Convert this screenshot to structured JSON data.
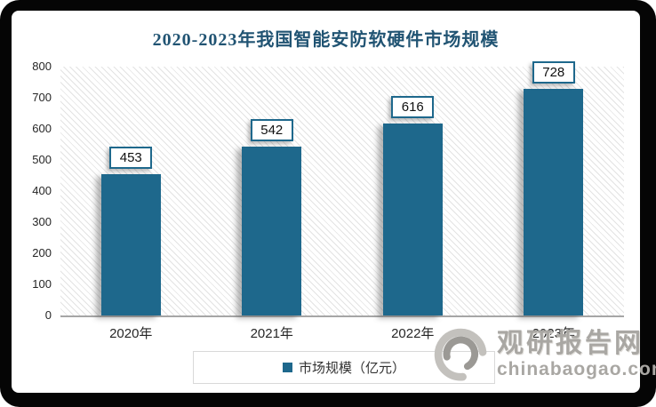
{
  "title": "2020-2023年我国智能安防软硬件市场规模",
  "chart_data": {
    "type": "bar",
    "title": "2020-2023年我国智能安防软硬件市场规模",
    "categories": [
      "2020年",
      "2021年",
      "2022年",
      "2023年"
    ],
    "values": [
      453,
      542,
      616,
      728
    ],
    "series": [
      {
        "name": "市场规模（亿元）",
        "values": [
          453,
          542,
          616,
          728
        ]
      }
    ],
    "unit": "亿元",
    "xlabel": "",
    "ylabel": "",
    "ylim": [
      0,
      800
    ],
    "yticks": [
      0,
      100,
      200,
      300,
      400,
      500,
      600,
      700,
      800
    ],
    "grid": false,
    "legend_position": "bottom",
    "plot_background": "white-with-diagonal-hatch",
    "bar_color": "#1E688C"
  },
  "legend": {
    "label": "市场规模（亿元）",
    "marker_color": "#1E688C"
  },
  "watermark": {
    "logo": "swirl-logo",
    "name": "观研报告网",
    "domain": "chinabaogao.com"
  },
  "colors": {
    "frame": "#050505",
    "title_text": "#215473",
    "bar": "#1E688C",
    "axis_line": "#a6a6a6",
    "tick_text": "#262626",
    "legend_border": "#d9d9d9",
    "watermark_gray": "#a9a7a3"
  }
}
